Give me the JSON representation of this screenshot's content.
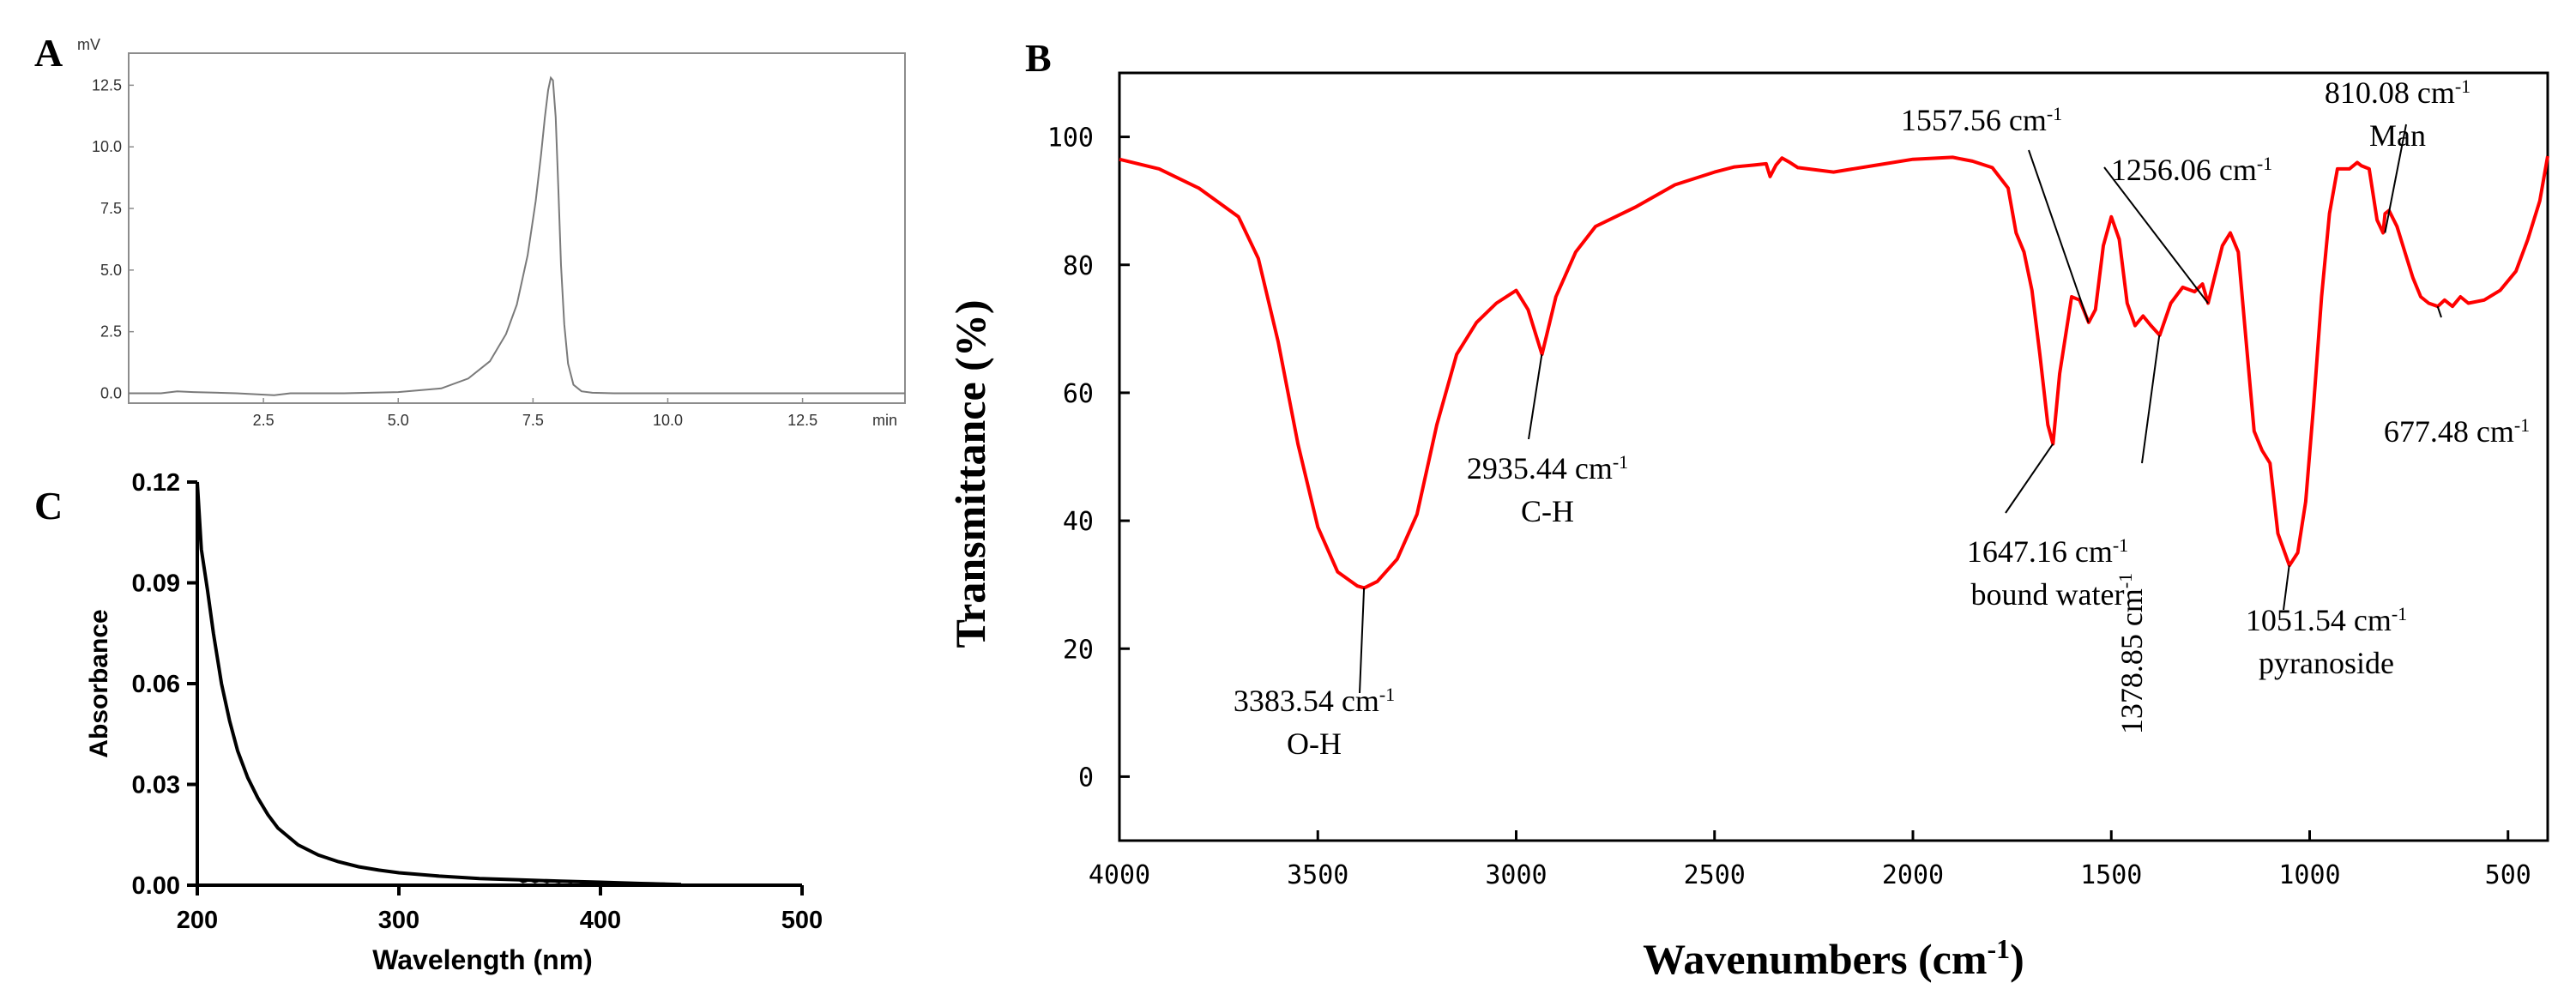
{
  "panels": {
    "a": "A",
    "b": "B",
    "c": "C"
  },
  "chart_data": [
    {
      "id": "A",
      "type": "line",
      "title": "",
      "ylabel_unit": "mV",
      "xlabel_unit": "min",
      "xlim": [
        0.0,
        14.4
      ],
      "ylim": [
        -0.4,
        13.8
      ],
      "x_ticks": [
        2.5,
        5.0,
        7.5,
        10.0,
        12.5
      ],
      "x_tick_labels": [
        "2.5",
        "5.0",
        "7.5",
        "10.0",
        "12.5"
      ],
      "y_ticks": [
        0.0,
        2.5,
        5.0,
        7.5,
        10.0,
        12.5
      ],
      "y_tick_labels": [
        "0.0",
        "2.5",
        "5.0",
        "7.5",
        "10.0",
        "12.5"
      ],
      "series": [
        {
          "name": "chromatogram",
          "color": "#7a7a7a",
          "x": [
            0.0,
            0.6,
            0.9,
            1.2,
            2.0,
            2.7,
            3.0,
            4.0,
            5.0,
            5.8,
            6.3,
            6.7,
            7.0,
            7.2,
            7.4,
            7.55,
            7.65,
            7.72,
            7.78,
            7.83,
            7.87,
            7.92,
            7.97,
            8.02,
            8.08,
            8.15,
            8.25,
            8.4,
            8.6,
            9.0,
            10.0,
            11.0,
            12.0,
            13.0,
            14.0,
            14.4
          ],
          "y": [
            0.0,
            0.0,
            0.08,
            0.05,
            0.0,
            -0.08,
            0.0,
            0.0,
            0.05,
            0.2,
            0.6,
            1.3,
            2.4,
            3.6,
            5.6,
            7.8,
            9.7,
            11.2,
            12.3,
            12.8,
            12.7,
            11.2,
            8.3,
            5.2,
            2.8,
            1.2,
            0.35,
            0.08,
            0.02,
            0.0,
            0.0,
            0.0,
            0.0,
            0.0,
            0.0,
            0.0
          ]
        }
      ]
    },
    {
      "id": "B",
      "type": "line",
      "title": "",
      "xlabel": "Wavenumbers (cm",
      "xlabel_sup": "-1",
      "xlabel_end": ")",
      "ylabel": "Transmittance (%)",
      "xlim": [
        4000,
        400
      ],
      "ylim": [
        -10,
        110
      ],
      "x_ticks": [
        4000,
        3500,
        3000,
        2500,
        2000,
        1500,
        1000,
        500
      ],
      "x_tick_labels": [
        "4000",
        "3500",
        "3000",
        "2500",
        "2000",
        "1500",
        "1000",
        "500"
      ],
      "y_ticks": [
        0,
        20,
        40,
        60,
        80,
        100
      ],
      "y_tick_labels": [
        "0",
        "20",
        "40",
        "60",
        "80",
        "100"
      ],
      "series": [
        {
          "name": "FT-IR spectrum",
          "color": "#ff0000",
          "x": [
            4000,
            3900,
            3800,
            3700,
            3650,
            3600,
            3550,
            3500,
            3450,
            3400,
            3383,
            3350,
            3300,
            3250,
            3200,
            3150,
            3100,
            3050,
            3000,
            2970,
            2935,
            2900,
            2850,
            2800,
            2700,
            2600,
            2500,
            2450,
            2400,
            2370,
            2360,
            2345,
            2330,
            2310,
            2290,
            2200,
            2100,
            2000,
            1900,
            1850,
            1800,
            1760,
            1740,
            1720,
            1700,
            1680,
            1660,
            1647,
            1630,
            1600,
            1580,
            1557,
            1540,
            1520,
            1500,
            1480,
            1460,
            1440,
            1420,
            1400,
            1378,
            1350,
            1320,
            1290,
            1270,
            1256,
            1240,
            1220,
            1200,
            1180,
            1160,
            1140,
            1120,
            1100,
            1080,
            1051,
            1030,
            1010,
            990,
            970,
            950,
            930,
            900,
            880,
            870,
            850,
            830,
            815,
            810,
            800,
            780,
            760,
            740,
            720,
            700,
            677,
            660,
            640,
            620,
            600,
            560,
            520,
            480,
            450,
            420,
            400
          ],
          "y": [
            96.5,
            95,
            92,
            87.5,
            81,
            68,
            52,
            39,
            32,
            29.8,
            29.5,
            30.5,
            34,
            41,
            55,
            66,
            71,
            74,
            76,
            73,
            66,
            75,
            82,
            86,
            89,
            92.5,
            94.5,
            95.3,
            95.6,
            95.8,
            93.8,
            95.6,
            96.7,
            96.0,
            95.2,
            94.5,
            95.5,
            96.5,
            96.8,
            96.2,
            95.2,
            92,
            85,
            82,
            76,
            66,
            55,
            52,
            63,
            75,
            74.5,
            71,
            73,
            83,
            87.5,
            84,
            74,
            70.5,
            72,
            70.5,
            69,
            74,
            76.5,
            75.8,
            77,
            74,
            78,
            83,
            85,
            82,
            68,
            54,
            51,
            49,
            38,
            33,
            35,
            43,
            58,
            75,
            88,
            95,
            95,
            96,
            95.5,
            95,
            87,
            85,
            88,
            88.5,
            86,
            82,
            78,
            75,
            74,
            73.5,
            74.5,
            73.5,
            75,
            74,
            74.5,
            76,
            79,
            84,
            90,
            97
          ]
        }
      ],
      "annotations": [
        {
          "text": "3383.54 cm",
          "sup": "-1",
          "sub": "O-H",
          "x": 3383.54,
          "y": 29.5
        },
        {
          "text": "2935.44 cm",
          "sup": "-1",
          "sub": "C-H",
          "x": 2935.44,
          "y": 66
        },
        {
          "text": "1647.16 cm",
          "sup": "-1",
          "sub": "bound water",
          "x": 1647.16,
          "y": 52
        },
        {
          "text": "1557.56 cm",
          "sup": "-1",
          "sub": "",
          "x": 1557.56,
          "y": 71
        },
        {
          "text": "1378.85 cm",
          "sup": "-1",
          "sub": "",
          "x": 1378.85,
          "y": 69
        },
        {
          "text": "1256.06 cm",
          "sup": "-1",
          "sub": "",
          "x": 1256.06,
          "y": 74
        },
        {
          "text": "1051.54 cm",
          "sup": "-1",
          "sub": "pyranoside",
          "x": 1051.54,
          "y": 33
        },
        {
          "text": "810.08 cm",
          "sup": "-1",
          "sub": "Man",
          "x": 810.08,
          "y": 85
        },
        {
          "text": "677.48 cm",
          "sup": "-1",
          "sub": "",
          "x": 677.48,
          "y": 73.5
        }
      ]
    },
    {
      "id": "C",
      "type": "line",
      "title": "",
      "xlabel": "Wavelength (nm)",
      "ylabel": "Absorbance",
      "xlim": [
        200,
        500
      ],
      "ylim": [
        0,
        0.12
      ],
      "x_ticks": [
        200,
        300,
        400,
        500
      ],
      "x_tick_labels": [
        "200",
        "300",
        "400",
        "500"
      ],
      "y_ticks": [
        0,
        0.03,
        0.06,
        0.09,
        0.12
      ],
      "y_tick_labels": [
        "0.00",
        "0.03",
        "0.06",
        "0.09",
        "0.12"
      ],
      "series": [
        {
          "name": "UV spectrum",
          "color": "#000000",
          "x": [
            200,
            202,
            205,
            208,
            212,
            216,
            220,
            225,
            230,
            235,
            240,
            250,
            260,
            270,
            280,
            290,
            300,
            320,
            340,
            360,
            380,
            400,
            420,
            440
          ],
          "y": [
            0.12,
            0.1,
            0.088,
            0.075,
            0.06,
            0.049,
            0.04,
            0.032,
            0.026,
            0.021,
            0.017,
            0.012,
            0.009,
            0.007,
            0.0055,
            0.0045,
            0.0037,
            0.0027,
            0.002,
            0.0016,
            0.0012,
            0.0009,
            0.0005,
            0.0002
          ]
        }
      ]
    }
  ]
}
